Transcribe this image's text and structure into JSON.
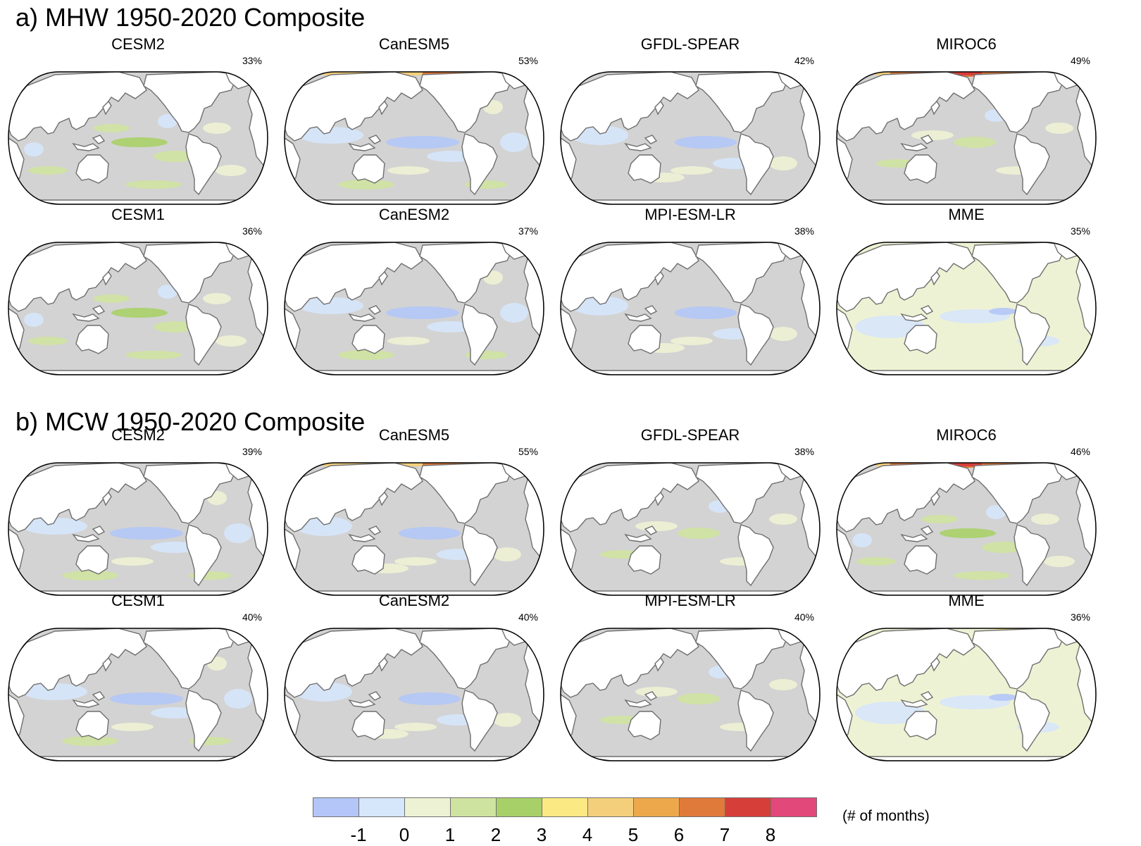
{
  "sections": [
    {
      "title": "a) MHW 1950-2020 Composite",
      "panels": [
        {
          "model": "CESM2",
          "pct": "33%",
          "warm": 0,
          "land": "white"
        },
        {
          "model": "CanESM5",
          "pct": "53%",
          "warm": 2,
          "land": "white"
        },
        {
          "model": "GFDL-SPEAR",
          "pct": "42%",
          "warm": 0,
          "land": "white"
        },
        {
          "model": "MIROC6",
          "pct": "49%",
          "warm": 3,
          "land": "white"
        },
        {
          "model": "CESM1",
          "pct": "36%",
          "warm": 0,
          "land": "white"
        },
        {
          "model": "CanESM2",
          "pct": "37%",
          "warm": 0,
          "land": "white"
        },
        {
          "model": "MPI-ESM-LR",
          "pct": "38%",
          "warm": 0,
          "land": "white"
        },
        {
          "model": "MME",
          "pct": "35%",
          "warm": 0,
          "land": "white",
          "ocean": "mme"
        }
      ]
    },
    {
      "title": "b) MCW 1950-2020 Composite",
      "panels": [
        {
          "model": "CESM2",
          "pct": "39%",
          "warm": 0,
          "land": "white"
        },
        {
          "model": "CanESM5",
          "pct": "55%",
          "warm": 2,
          "land": "white"
        },
        {
          "model": "GFDL-SPEAR",
          "pct": "38%",
          "warm": 0,
          "land": "white"
        },
        {
          "model": "MIROC6",
          "pct": "46%",
          "warm": 3,
          "land": "white"
        },
        {
          "model": "CESM1",
          "pct": "40%",
          "warm": 0,
          "land": "white"
        },
        {
          "model": "CanESM2",
          "pct": "40%",
          "warm": 0,
          "land": "white"
        },
        {
          "model": "MPI-ESM-LR",
          "pct": "40%",
          "warm": 0,
          "land": "white"
        },
        {
          "model": "MME",
          "pct": "36%",
          "warm": 1,
          "land": "white",
          "ocean": "mme"
        }
      ]
    }
  ],
  "colorbar": {
    "colors": [
      "#b3c6f7",
      "#d6e6fb",
      "#eef2d4",
      "#cfe3a0",
      "#a8d068",
      "#fbe983",
      "#f3cf7c",
      "#eca84b",
      "#e07a3b",
      "#d63e3a",
      "#e2487a"
    ],
    "ticks": [
      "-1",
      "0",
      "1",
      "2",
      "3",
      "4",
      "5",
      "6",
      "7",
      "8"
    ],
    "unit": "(# of months)"
  },
  "colors": {
    "ocean_gray": "#d3d3d3",
    "coast": "#6e6e6e",
    "land": "#ffffff"
  }
}
